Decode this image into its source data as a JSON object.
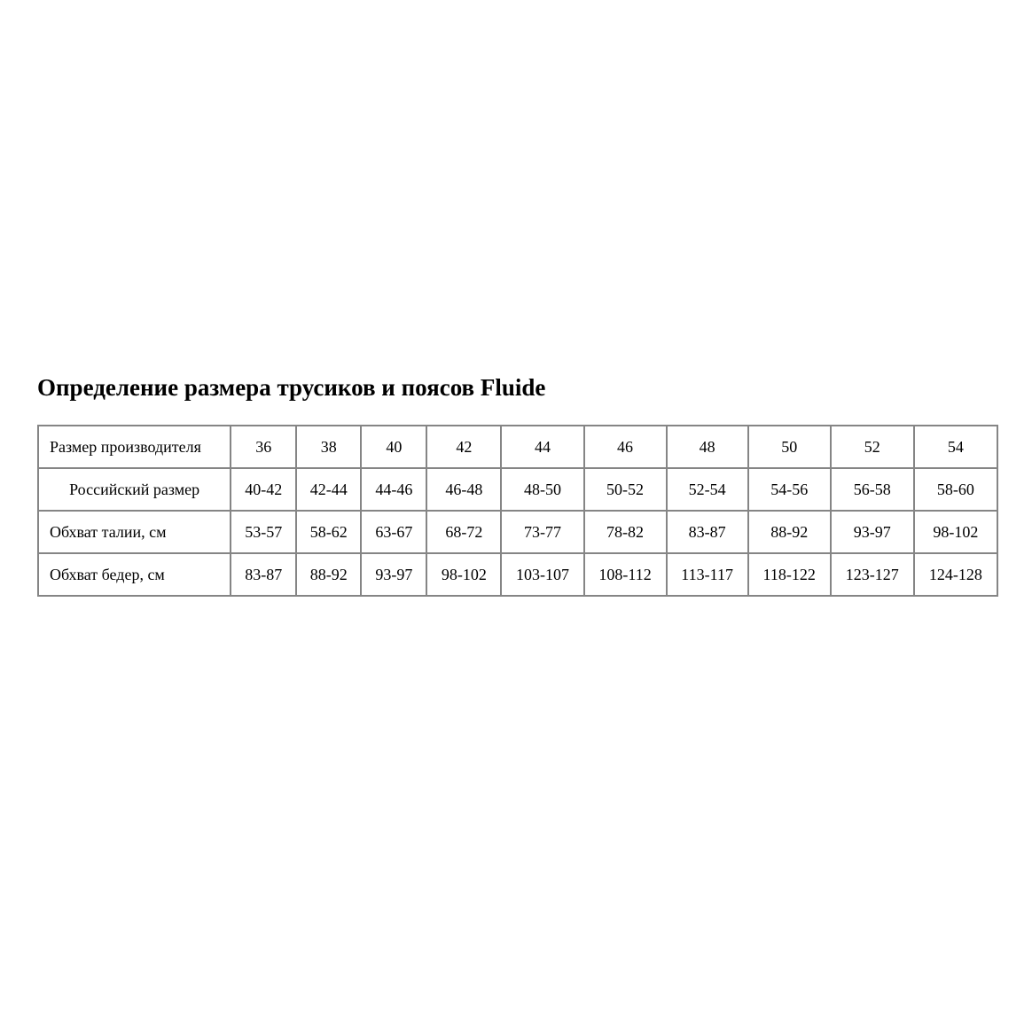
{
  "title": "Определение размера трусиков и поясов Fluide",
  "table": {
    "rows": [
      {
        "label": "Размер производителя",
        "values": [
          "36",
          "38",
          "40",
          "42",
          "44",
          "46",
          "48",
          "50",
          "52",
          "54"
        ]
      },
      {
        "label": "Российский размер",
        "values": [
          "40-42",
          "42-44",
          "44-46",
          "46-48",
          "48-50",
          "50-52",
          "52-54",
          "54-56",
          "56-58",
          "58-60"
        ]
      },
      {
        "label": "Обхват талии, см",
        "values": [
          "53-57",
          "58-62",
          "63-67",
          "68-72",
          "73-77",
          "78-82",
          "83-87",
          "88-92",
          "93-97",
          "98-102"
        ]
      },
      {
        "label": "Обхват бедер, см",
        "values": [
          "83-87",
          "88-92",
          "93-97",
          "98-102",
          "103-107",
          "108-112",
          "113-117",
          "118-122",
          "123-127",
          "124-128"
        ]
      }
    ]
  }
}
